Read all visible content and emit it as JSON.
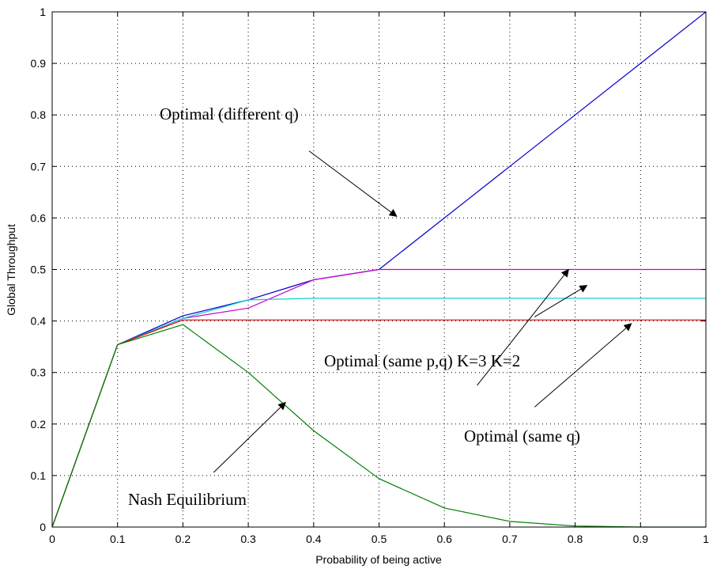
{
  "chart_data": {
    "type": "line",
    "xlabel": "Probability of being active",
    "ylabel": "Global Throughput",
    "xlim": [
      0,
      1
    ],
    "ylim": [
      0,
      1
    ],
    "grid": true,
    "x_ticks": [
      "0",
      "0.1",
      "0.2",
      "0.3",
      "0.4",
      "0.5",
      "0.6",
      "0.7",
      "0.8",
      "0.9",
      "1"
    ],
    "y_ticks": [
      "0",
      "0.1",
      "0.2",
      "0.3",
      "0.4",
      "0.5",
      "0.6",
      "0.7",
      "0.8",
      "0.9",
      "1"
    ],
    "x": [
      0,
      0.1,
      0.2,
      0.3,
      0.4,
      0.5,
      0.6,
      0.7,
      0.8,
      0.9,
      1.0
    ],
    "series": [
      {
        "color": "#0000cc",
        "values": [
          0,
          0.354,
          0.41,
          0.441,
          0.48,
          0.5,
          0.6,
          0.7,
          0.8,
          0.9,
          1.0
        ]
      },
      {
        "color": "#cc00cc",
        "values": [
          0,
          0.354,
          0.405,
          0.425,
          0.48,
          0.5,
          0.5,
          0.5,
          0.5,
          0.5,
          0.5
        ]
      },
      {
        "color": "#00cccc",
        "values": [
          0,
          0.354,
          0.405,
          0.441,
          0.444,
          0.444,
          0.444,
          0.444,
          0.444,
          0.444,
          0.444
        ]
      },
      {
        "color": "#dd0000",
        "values": [
          0,
          0.354,
          0.402,
          0.402,
          0.402,
          0.402,
          0.402,
          0.402,
          0.402,
          0.402,
          0.402
        ]
      },
      {
        "color": "#008000",
        "values": [
          0,
          0.354,
          0.393,
          0.3,
          0.187,
          0.094,
          0.037,
          0.011,
          0.002,
          0.0,
          0.0
        ]
      }
    ],
    "annotations": [
      {
        "text": "Optimal (different q)",
        "arrow_from": [
          0.393,
          0.73
        ],
        "arrow_to": [
          0.527,
          0.603
        ]
      },
      {
        "text": "Optimal (same p,q) K=3 K=2",
        "arrow_from": [
          0.65,
          0.275
        ],
        "arrow_to": [
          0.79,
          0.5
        ]
      },
      {
        "text": "",
        "arrow_from": [
          0.738,
          0.408
        ],
        "arrow_to": [
          0.818,
          0.469
        ]
      },
      {
        "text": "Optimal (same q)",
        "arrow_from": [
          0.738,
          0.233
        ],
        "arrow_to": [
          0.886,
          0.395
        ]
      },
      {
        "text": "Nash Equilibrium",
        "arrow_from": [
          0.247,
          0.106
        ],
        "arrow_to": [
          0.357,
          0.242
        ]
      }
    ]
  }
}
